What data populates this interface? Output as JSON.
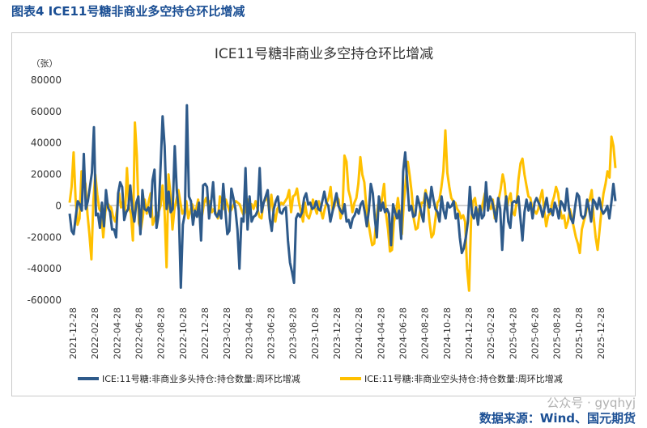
{
  "figure_title": "图表4 ICE11号糖非商业多空持仓环比增减",
  "watermark": "公众号 · gyqhyj",
  "source": "数据来源：Wind、国元期货",
  "colors": {
    "long": "#2e5a8a",
    "short": "#ffc000",
    "title": "#1b4f94"
  },
  "chart_data": {
    "type": "line",
    "title": "ICE11号糖非商业多空持仓环比增减",
    "ylabel": "（张）",
    "xlabel": "",
    "ylim": [
      -60000,
      80000
    ],
    "yticks": [
      80000,
      60000,
      40000,
      20000,
      0,
      -20000,
      -40000,
      -60000
    ],
    "ytick_labels": [
      "80000",
      "60000",
      "40000",
      "20000",
      "0",
      "-20000",
      "-40000",
      "-60000"
    ],
    "xticks": [
      "2021-12-28",
      "2022-02-28",
      "2022-04-28",
      "2022-06-28",
      "2022-08-28",
      "2022-10-28",
      "2022-12-28",
      "2023-02-28",
      "2023-04-28",
      "2023-06-28",
      "2023-08-28",
      "2023-10-28",
      "2023-12-28",
      "2024-02-28",
      "2024-04-28",
      "2024-06-28",
      "2024-08-28",
      "2024-10-28",
      "2024-12-28",
      "2025-02-28",
      "2025-04-28",
      "2025-06-28",
      "2025-08-28",
      "2025-10-28",
      "2025-12-28"
    ],
    "legend": "bottom-center",
    "series": [
      {
        "name": "ICE:11号糖:非商业多头持仓:持仓数量:周环比增减",
        "values": [
          -5000,
          -16000,
          -18000,
          -7000,
          3000,
          1000,
          -3000,
          33000,
          -2000,
          3000,
          12000,
          21000,
          50000,
          -6000,
          -5000,
          -14000,
          2000,
          -13000,
          10000,
          -1000,
          -4000,
          -15000,
          -15000,
          -20000,
          8000,
          15000,
          12000,
          -9000,
          -4000,
          -2000,
          13000,
          -2000,
          -10000,
          2000,
          6000,
          -18000,
          10000,
          -2000,
          -3000,
          -1000,
          -7000,
          16000,
          23000,
          -14000,
          -6000,
          25000,
          57000,
          38000,
          -2000,
          9000,
          -4000,
          -2000,
          38000,
          10000,
          -3000,
          -52000,
          -12000,
          -5000,
          64000,
          6000,
          3000,
          -12000,
          -3000,
          -7000,
          2000,
          -22000,
          13000,
          14000,
          12000,
          -8000,
          2000,
          15000,
          -5000,
          -7000,
          -3000,
          -8000,
          14000,
          -2000,
          -18000,
          -16000,
          11000,
          5000,
          -2000,
          -15000,
          -40000,
          -8000,
          -10000,
          24000,
          -15000,
          6000,
          -10000,
          -7000,
          -6000,
          -3000,
          24000,
          -4000,
          2000,
          6000,
          10000,
          -8000,
          -16000,
          -2000,
          3000,
          6000,
          -4000,
          -5000,
          -2000,
          -1000,
          -22000,
          -36000,
          -42000,
          -49000,
          -8000,
          -5000,
          -7000,
          -4000,
          5000,
          8000,
          1000,
          2000,
          -2000,
          -1000,
          3000,
          -2000,
          -3000,
          3000,
          9000,
          2000,
          0,
          -10000,
          -4000,
          2000,
          8000,
          0,
          -3000,
          -5000,
          1000,
          -10000,
          -9000,
          -14000,
          -8000,
          -6000,
          -2000,
          -5000,
          1000,
          3000,
          -4000,
          -13000,
          -3000,
          14000,
          8000,
          -8000,
          -20000,
          6000,
          -3000,
          2000,
          -4000,
          -2000,
          -5000,
          -25000,
          1000,
          -4000,
          -8000,
          -3000,
          -21000,
          22000,
          34000,
          15000,
          -3000,
          0,
          -7000,
          -6000,
          6000,
          1000,
          -5000,
          -10000,
          8000,
          5000,
          -1000,
          12000,
          4000,
          -2000,
          -4000,
          -10000,
          6000,
          -3000,
          -8000,
          2000,
          -1000,
          0,
          3000,
          -8000,
          -5000,
          -20000,
          -30000,
          -27000,
          -20000,
          -10000,
          12000,
          -5000,
          -8000,
          -1000,
          -12000,
          0,
          -8000,
          -6000,
          15000,
          -3000,
          6000,
          3000,
          -3000,
          -10000,
          5000,
          -2000,
          -28000,
          -5000,
          6000,
          -10000,
          -14000,
          2000,
          3000,
          2000,
          6000,
          -8000,
          -22000,
          -4000,
          4000,
          -3000,
          2000,
          -8000,
          2000,
          5000,
          2000,
          -1000,
          -7000,
          -1000,
          5000,
          -4000,
          -2000,
          -6000,
          2000,
          -2000,
          -8000,
          3000,
          1000,
          -3000,
          11000,
          -2000,
          -8000,
          -11000,
          -1000,
          8000,
          6000,
          -6000,
          -8000,
          -6000,
          4000,
          -2000,
          -10000,
          4000,
          2000,
          -2000,
          5000,
          -2000,
          -5000,
          -3000,
          0,
          -8000,
          2000,
          14000,
          3000
        ]
      },
      {
        "name": "ICE:11号糖:非商业空头持仓:持仓数量:周环比增减",
        "values": [
          2000,
          12000,
          34000,
          5000,
          -12000,
          -8000,
          22000,
          18000,
          14000,
          -5000,
          -18000,
          -34000,
          3000,
          20000,
          7000,
          -2000,
          -4000,
          -20000,
          -4000,
          2000,
          0,
          -1000,
          -7000,
          -10000,
          -2000,
          8000,
          -1000,
          3000,
          -5000,
          24000,
          -1000,
          -5000,
          -22000,
          53000,
          32000,
          -11000,
          -15000,
          -7000,
          4000,
          -5000,
          3000,
          8000,
          -12000,
          -8000,
          -5000,
          -4000,
          0,
          13000,
          -3000,
          -39000,
          20000,
          7000,
          -15000,
          -2000,
          4000,
          10000,
          2000,
          -5000,
          -3000,
          3000,
          -8000,
          -3000,
          1000,
          -3000,
          -2000,
          4000,
          -9000,
          -6000,
          2000,
          5000,
          0,
          3000,
          -4000,
          -2000,
          -5000,
          -8000,
          6000,
          2000,
          -2000,
          4000,
          0,
          -4000,
          -2000,
          1000,
          3000,
          2000,
          1000,
          -3000,
          -6000,
          -2000,
          4000,
          -1000,
          1000,
          -2000,
          3000,
          -2000,
          -7000,
          -8000,
          2000,
          4000,
          6000,
          -4000,
          7000,
          -4000,
          -10000,
          -2000,
          0,
          2000,
          1000,
          3000,
          5000,
          10000,
          -4000,
          6000,
          7000,
          11000,
          2000,
          -4000,
          -10000,
          2000,
          -6000,
          -8000,
          -4000,
          4000,
          -1000,
          -5000,
          3000,
          -3000,
          -8000,
          -2000,
          2000,
          5000,
          12000,
          -3000,
          0,
          6000,
          4000,
          -8000,
          -3000,
          32000,
          28000,
          10000,
          5000,
          -4000,
          2000,
          5000,
          14000,
          31000,
          20000,
          15000,
          0,
          -10000,
          -18000,
          -25000,
          -24000,
          -10000,
          1000,
          -3000,
          5000,
          14000,
          -5000,
          -15000,
          -29000,
          -28000,
          -10000,
          -5000,
          5000,
          -5000,
          -18000,
          2000,
          16000,
          28000,
          19000,
          8000,
          -8000,
          -15000,
          -14000,
          -5000,
          2000,
          2000,
          10000,
          3000,
          -10000,
          -20000,
          -18000,
          -8000,
          2000,
          4000,
          12000,
          22000,
          48000,
          21000,
          12000,
          5000,
          3000,
          2000,
          -2000,
          -4000,
          -8000,
          -6000,
          -10000,
          -40000,
          -54000,
          -10000,
          3000,
          5000,
          -5000,
          -2000,
          -4000,
          2000,
          8000,
          3000,
          0,
          -2000,
          4000,
          -8000,
          -1000,
          4000,
          11000,
          20000,
          14000,
          -2000,
          4000,
          8000,
          -4000,
          -6000,
          2000,
          17000,
          27000,
          30000,
          20000,
          13000,
          6000,
          5000,
          -2000,
          -3000,
          -5000,
          -2000,
          5000,
          10000,
          -3000,
          -13000,
          -6000,
          -5000,
          2000,
          6000,
          12000,
          8000,
          -2000,
          -8000,
          -6000,
          -14000,
          -10000,
          -2000,
          -8000,
          -14000,
          -20000,
          -24000,
          -30000,
          -15000,
          -10000,
          -5000,
          2000,
          4000,
          10000,
          -7000,
          -20000,
          -28000,
          -15000,
          -2000,
          8000,
          14000,
          22000,
          18000,
          44000,
          38000,
          24000
        ]
      }
    ]
  }
}
